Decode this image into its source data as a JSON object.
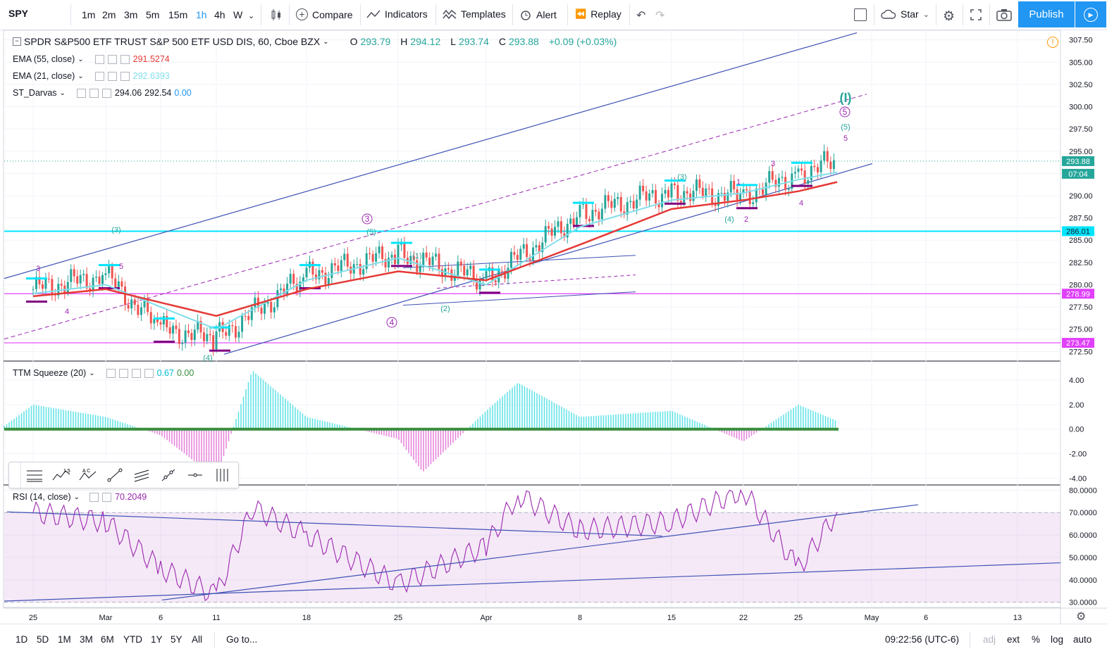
{
  "toolbar": {
    "symbol": "SPY",
    "timeframes": [
      "1m",
      "2m",
      "3m",
      "5m",
      "15m",
      "1h",
      "4h",
      "W"
    ],
    "active_timeframe": "1h",
    "compare": "Compare",
    "indicators": "Indicators",
    "templates": "Templates",
    "alert": "Alert",
    "replay": "Replay",
    "star": "Star",
    "publish": "Publish"
  },
  "main_legend": {
    "title": "SPDR S&P500 ETF TRUST S&P 500 ETF USD DIS, 60, Cboe BZX",
    "o_label": "O",
    "o": "293.79",
    "h_label": "H",
    "h": "294.12",
    "l_label": "L",
    "l": "293.74",
    "c_label": "C",
    "c": "293.88",
    "change": "+0.09 (+0.03%)"
  },
  "indicator_legends": [
    {
      "name": "EMA (55, close)",
      "v1": "291.5274",
      "color": "#e53935"
    },
    {
      "name": "EMA (21, close)",
      "v1": "292.6393",
      "color": "#80deea"
    },
    {
      "name": "ST_Darvas",
      "v1": "294.06",
      "v2": "292.54",
      "v3": "0.00",
      "color": "#2196f3"
    }
  ],
  "squeeze_legend": {
    "name": "TTM Squeeze (20)",
    "v1": "0.67",
    "v2": "0.00"
  },
  "rsi_legend": {
    "name": "RSI (14, close)",
    "v1": "70.2049"
  },
  "price_axis": {
    "labels": [
      "307.50",
      "305.00",
      "302.50",
      "300.00",
      "297.50",
      "295.00",
      "292.50",
      "290.00",
      "287.50",
      "285.00",
      "282.50",
      "280.00",
      "277.50",
      "275.00",
      "272.50"
    ],
    "tags": [
      {
        "value": "293.88",
        "color": "#26a69a"
      },
      {
        "value": "07:04",
        "color": "#26a69a"
      },
      {
        "value": "286.01",
        "color": "#00e5ff"
      },
      {
        "value": "278.99",
        "color": "#e040fb"
      },
      {
        "value": "273.47",
        "color": "#e040fb"
      }
    ]
  },
  "squeeze_axis": [
    "4.00",
    "2.00",
    "0.00",
    "-2.00",
    "-4.00"
  ],
  "rsi_axis": [
    "80.0000",
    "70.0000",
    "60.0000",
    "50.0000",
    "40.0000",
    "30.0000"
  ],
  "time_axis": [
    "25",
    "Mar",
    "6",
    "11",
    "18",
    "25",
    "Apr",
    "8",
    "15",
    "22",
    "25",
    "May",
    "6",
    "13"
  ],
  "wave_labels": {
    "main": [
      "3",
      "4",
      "5",
      "(3)",
      "(4)",
      "3",
      "(5)",
      "4",
      "(1)",
      "(2)",
      "(3)",
      "(4)",
      "1",
      "2",
      "3",
      "4",
      "(I)",
      "5",
      "(5)",
      "5"
    ]
  },
  "bottombar": {
    "ranges": [
      "1D",
      "5D",
      "1M",
      "3M",
      "6M",
      "YTD",
      "1Y",
      "5Y",
      "All"
    ],
    "goto": "Go to...",
    "clock": "09:22:56 (UTC-6)",
    "adj": "adj",
    "ext": "ext",
    "pct": "%",
    "log": "log",
    "auto": "auto"
  },
  "chart_data": [
    {
      "type": "line",
      "title": "SPDR S&P500 ETF TRUST S&P 500 ETF USD DIS, 60, Cboe BZX",
      "x": [
        "Feb 25",
        "Mar 1",
        "Mar 6",
        "Mar 11",
        "Mar 18",
        "Mar 25",
        "Apr 1",
        "Apr 8",
        "Apr 15",
        "Apr 22",
        "Apr 25",
        "Apr 26"
      ],
      "series": [
        {
          "name": "Close",
          "values": [
            279.5,
            281.0,
            275.0,
            274.0,
            281.0,
            283.5,
            280.5,
            288.0,
            290.5,
            290.0,
            292.5,
            293.88
          ]
        },
        {
          "name": "EMA (55, close)",
          "values": [
            278.7,
            279.5,
            278.0,
            276.5,
            279.5,
            281.5,
            280.5,
            284.5,
            288.5,
            289.5,
            290.5,
            291.53
          ]
        },
        {
          "name": "EMA (21, close)",
          "values": [
            279.0,
            280.0,
            277.5,
            275.0,
            280.5,
            283.0,
            280.0,
            286.5,
            289.5,
            290.3,
            291.8,
            292.64
          ]
        }
      ],
      "horizontal_levels": [
        286.01,
        278.99,
        273.47
      ],
      "ylim": [
        271.5,
        308.5
      ]
    },
    {
      "type": "bar",
      "title": "TTM Squeeze (20)",
      "x": [
        "Feb 25",
        "Mar 1",
        "Mar 6",
        "Mar 11",
        "Mar 13",
        "Mar 18",
        "Mar 25",
        "Mar 27",
        "Apr 1",
        "Apr 3",
        "Apr 8",
        "Apr 15",
        "Apr 22",
        "Apr 25",
        "Apr 26"
      ],
      "values": [
        2.0,
        1.0,
        -0.5,
        -4.0,
        4.8,
        1.0,
        -0.8,
        -3.5,
        1.5,
        3.8,
        1.0,
        1.5,
        -1.0,
        2.0,
        0.67
      ],
      "ylim": [
        -4.5,
        5.5
      ]
    },
    {
      "type": "line",
      "title": "RSI (14, close)",
      "x": [
        "Feb 25",
        "Mar 1",
        "Mar 6",
        "Mar 11",
        "Mar 13",
        "Mar 18",
        "Mar 25",
        "Apr 1",
        "Apr 3",
        "Apr 8",
        "Apr 15",
        "Apr 22",
        "Apr 25",
        "Apr 26"
      ],
      "values": [
        70,
        66,
        45,
        33,
        72,
        60,
        38,
        55,
        78,
        62,
        66,
        80,
        45,
        70.2
      ],
      "ylim": [
        28,
        82
      ],
      "bands": [
        30,
        70
      ]
    }
  ]
}
